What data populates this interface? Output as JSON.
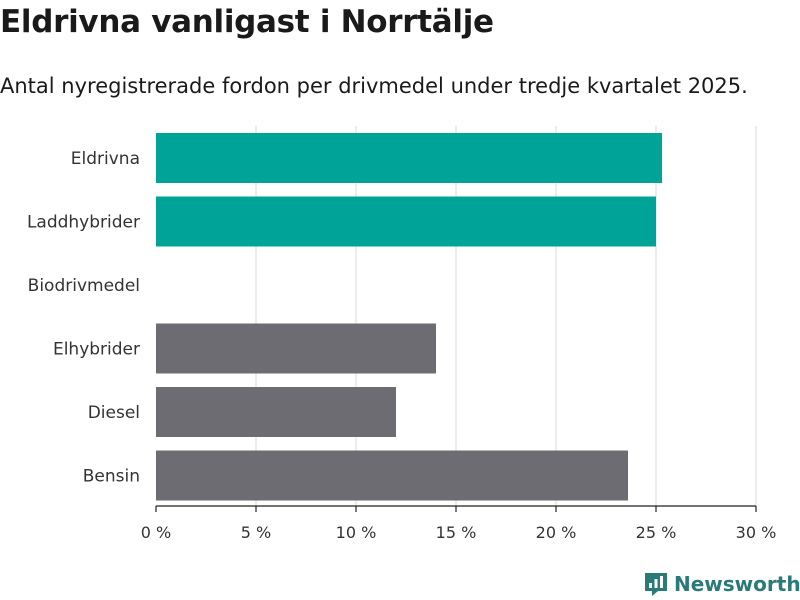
{
  "title": "Eldrivna vanligast i Norrtälje",
  "subtitle": "Antal nyregistrerade fordon per drivmedel under tredje kvartalet 2025.",
  "brand": "Newsworthy",
  "colors": {
    "highlight": "#00a398",
    "default": "#6d6c72",
    "grid": "#d9d9d9",
    "axis": "#222222",
    "brand": "#2a7a78"
  },
  "chart_data": {
    "type": "bar",
    "orientation": "horizontal",
    "categories": [
      "Eldrivna",
      "Laddhybrider",
      "Biodrivmedel",
      "Elhybrider",
      "Diesel",
      "Bensin"
    ],
    "values": [
      25.3,
      25.0,
      0,
      14.0,
      12.0,
      23.6
    ],
    "highlighted": [
      true,
      true,
      false,
      false,
      false,
      false
    ],
    "xlim": [
      0,
      30
    ],
    "xticks": [
      0,
      5,
      10,
      15,
      20,
      25,
      30
    ],
    "tick_labels": [
      "0 %",
      "5 %",
      "10 %",
      "15 %",
      "20 %",
      "25 %",
      "30 %"
    ],
    "xlabel": "",
    "ylabel": "",
    "grid": true
  }
}
